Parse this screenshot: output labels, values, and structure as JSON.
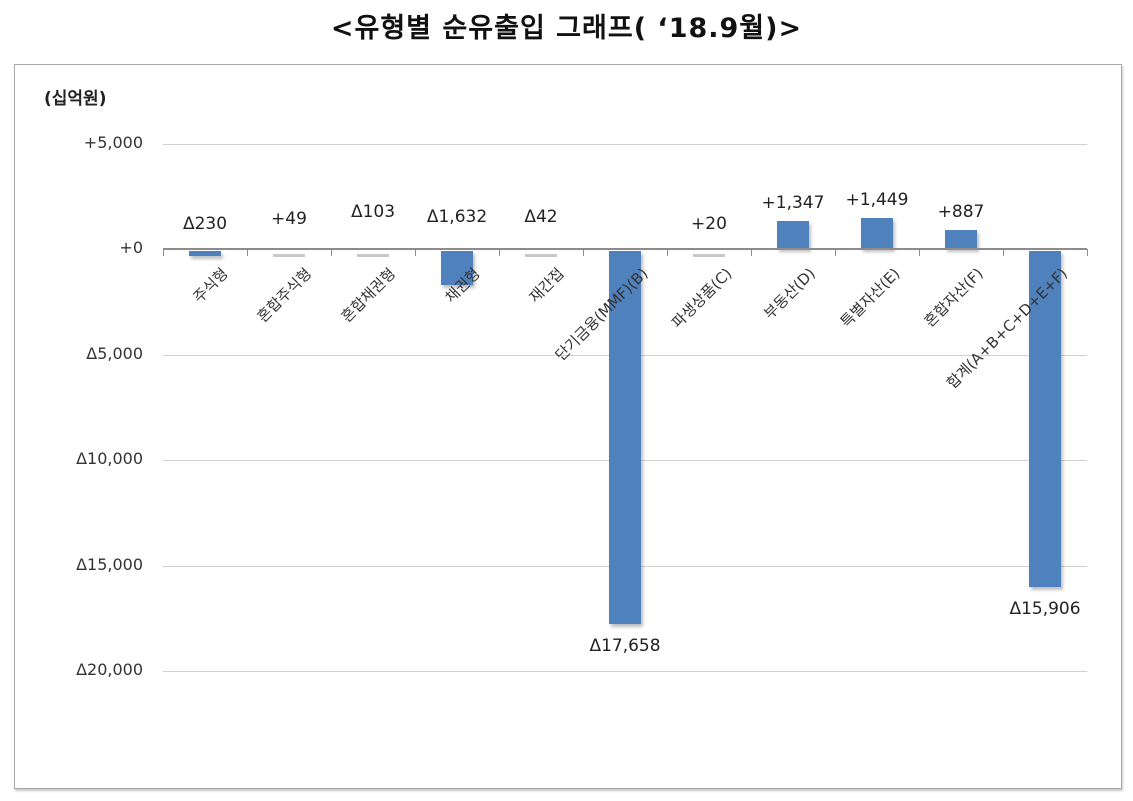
{
  "title": "<유형별 순유출입 그래프( ‘18.9월)>",
  "unit_label": "(십억원)",
  "colors": {
    "bar": "#4f81bd",
    "near_zero_bar": "#c9c9c9",
    "grid": "#d0d0d0",
    "axis": "#8c8c8c"
  },
  "y_axis": {
    "ticks": [
      {
        "label": "+5,000",
        "value": 5000
      },
      {
        "label": "+0",
        "value": 0
      },
      {
        "label": "Δ5,000",
        "value": -5000
      },
      {
        "label": "Δ10,000",
        "value": -10000
      },
      {
        "label": "Δ15,000",
        "value": -15000
      },
      {
        "label": "Δ20,000",
        "value": -20000
      }
    ]
  },
  "chart_data": {
    "type": "bar",
    "title": "<유형별 순유출입 그래프( ‘18.9월)>",
    "xlabel": "",
    "ylabel": "(십억원)",
    "ylim": [
      -20000,
      5000
    ],
    "grid": true,
    "legend": null,
    "categories": [
      "주식형",
      "혼합주식형",
      "혼합채권형",
      "채권형",
      "재간접",
      "단기금융(MMF)(B)",
      "파생상품(C)",
      "부동산(D)",
      "특별자산(E)",
      "혼합자산(F)",
      "합계(A+B+C+D+E+F)"
    ],
    "values": [
      -230,
      49,
      -103,
      -1632,
      -42,
      -17658,
      20,
      1347,
      1449,
      887,
      -15906
    ],
    "data_labels": [
      "Δ230",
      "+49",
      "Δ103",
      "Δ1,632",
      "Δ42",
      "Δ17,658",
      "+20",
      "+1,347",
      "+1,449",
      "+887",
      "Δ15,906"
    ],
    "y_tick_labels": [
      "+5,000",
      "+0",
      "Δ5,000",
      "Δ10,000",
      "Δ15,000",
      "Δ20,000"
    ]
  }
}
